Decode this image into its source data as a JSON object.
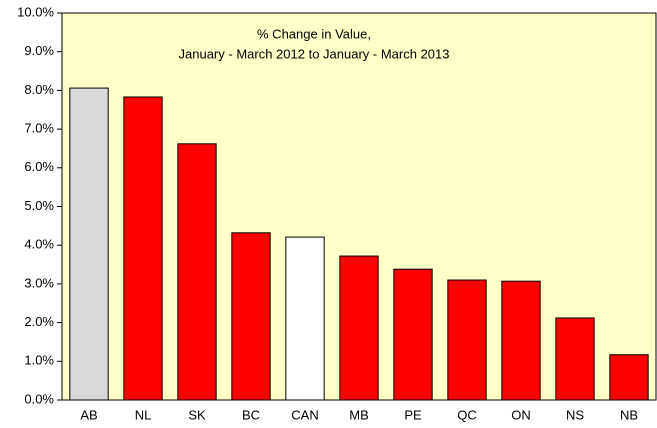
{
  "chart_data": {
    "type": "bar",
    "title": [
      "% Change in Value,",
      "January - March 2012 to January - March 2013"
    ],
    "categories": [
      "AB",
      "NL",
      "SK",
      "BC",
      "CAN",
      "MB",
      "PE",
      "QC",
      "ON",
      "NS",
      "NB"
    ],
    "values": [
      8.06,
      7.83,
      6.62,
      4.32,
      4.21,
      3.72,
      3.38,
      3.1,
      3.07,
      2.12,
      1.17
    ],
    "colors": [
      "#d9d9d9",
      "#ff0000",
      "#ff0000",
      "#ff0000",
      "#ffffff",
      "#ff0000",
      "#ff0000",
      "#ff0000",
      "#ff0000",
      "#ff0000",
      "#ff0000"
    ],
    "plot_background": "#ffffc8",
    "ylim": [
      0,
      10
    ],
    "yticks": [
      {
        "value": 0,
        "label": "0.0%"
      },
      {
        "value": 1,
        "label": "1.0%"
      },
      {
        "value": 2,
        "label": "2.0%"
      },
      {
        "value": 3,
        "label": "3.0%"
      },
      {
        "value": 4,
        "label": "4.0%"
      },
      {
        "value": 5,
        "label": "5.0%"
      },
      {
        "value": 6,
        "label": "6.0%"
      },
      {
        "value": 7,
        "label": "7.0%"
      },
      {
        "value": 8,
        "label": "8.0%"
      },
      {
        "value": 9,
        "label": "9.0%"
      },
      {
        "value": 10,
        "label": "10.0%"
      }
    ],
    "grid": false
  }
}
